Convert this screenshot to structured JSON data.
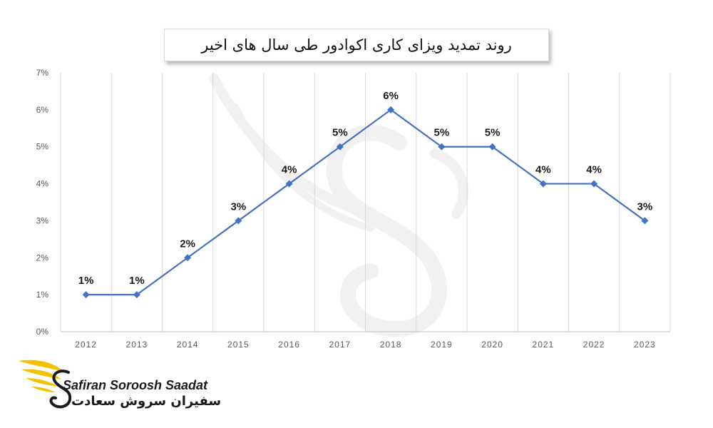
{
  "chart_data": {
    "type": "line",
    "title": "روند تمدید ویزای کاری اکوادور طی سال های اخیر",
    "categories": [
      "2012",
      "2013",
      "2014",
      "2015",
      "2016",
      "2017",
      "2018",
      "2019",
      "2020",
      "2021",
      "2022",
      "2023"
    ],
    "values": [
      1,
      1,
      2,
      3,
      4,
      5,
      6,
      5,
      5,
      4,
      4,
      3
    ],
    "data_labels": [
      "1%",
      "1%",
      "2%",
      "3%",
      "4%",
      "5%",
      "6%",
      "5%",
      "5%",
      "4%",
      "4%",
      "3%"
    ],
    "y_ticks": [
      "0%",
      "1%",
      "2%",
      "3%",
      "4%",
      "5%",
      "6%",
      "7%"
    ],
    "ylim": [
      0,
      7
    ],
    "grid": "vertical",
    "line_color": "#4472c4"
  },
  "logo": {
    "name_en": "Safiran Soroosh Saadat",
    "name_fa": "سفیران سروش سعادت",
    "accent_color": "#f2c200"
  }
}
